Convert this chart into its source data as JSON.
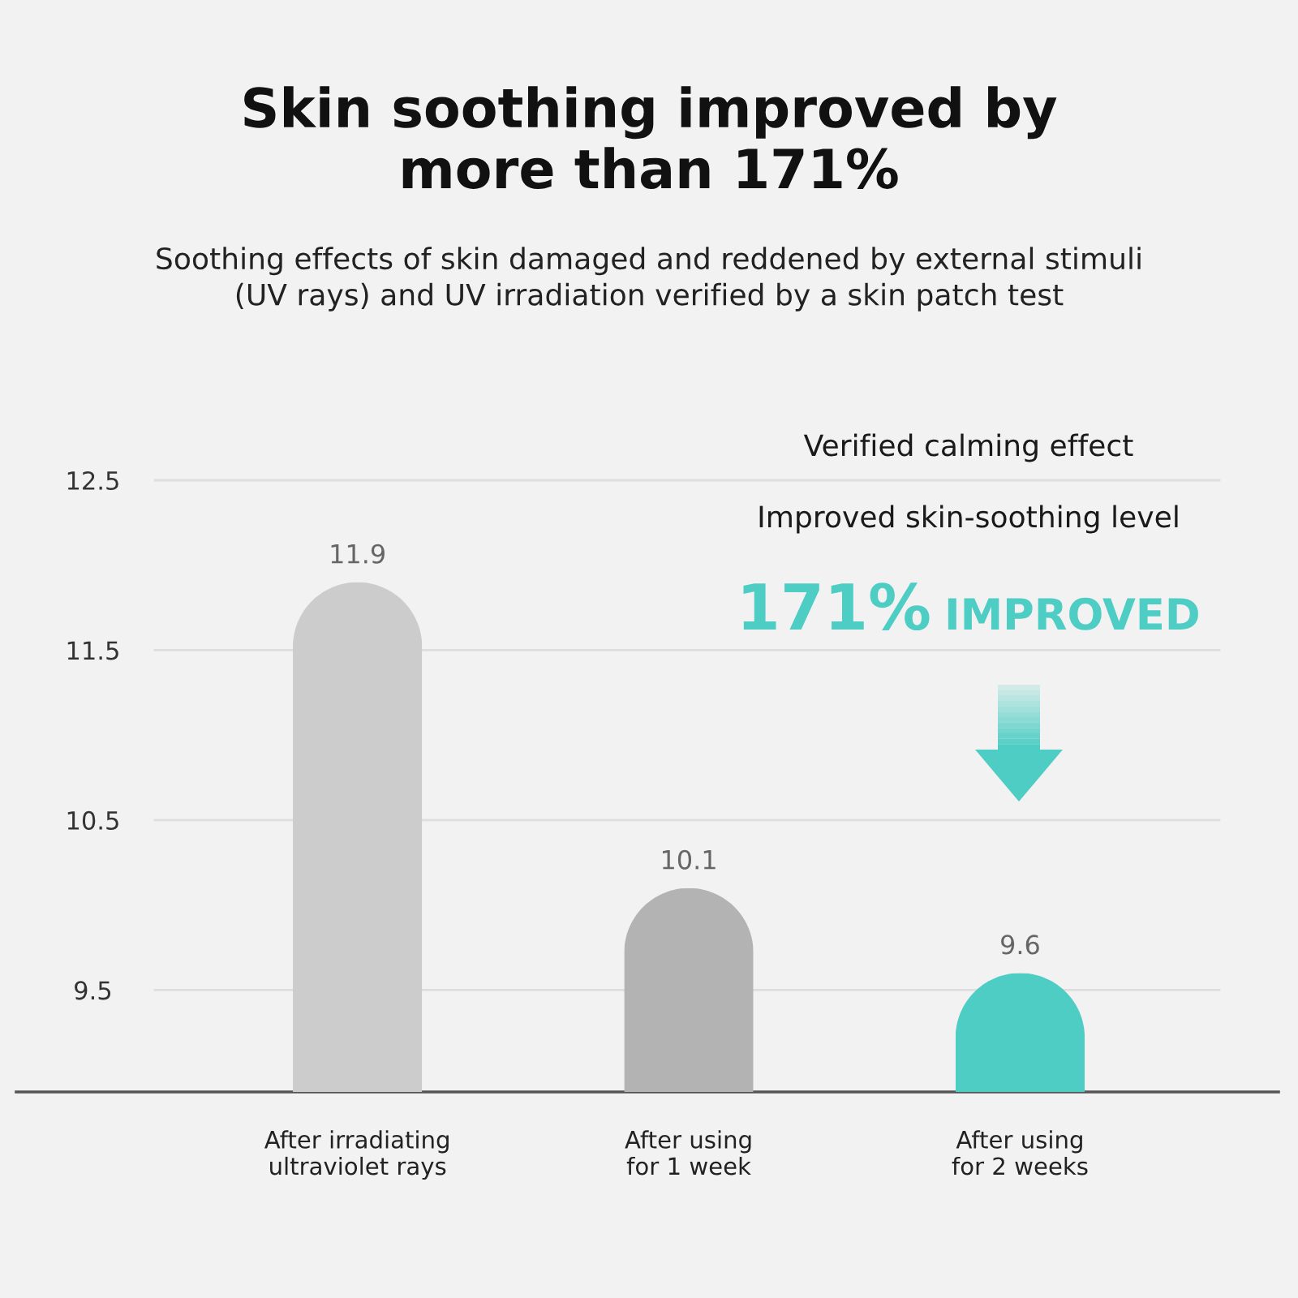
{
  "chart_data": {
    "type": "bar",
    "title": "Skin soothing improved by\nmore than 171%",
    "subtitle": "Soothing effects of skin damaged and reddened by external stimuli\n(UV rays) and UV irradiation verified by a skin patch test",
    "categories": [
      "After irradiating\nultraviolet rays",
      "After using\nfor 1 week",
      "After using\nfor 2 weeks"
    ],
    "values": [
      11.9,
      10.1,
      9.6
    ],
    "colors": [
      "#cccccc",
      "#b3b3b3",
      "#4ecdc4"
    ],
    "ylim": [
      8.9,
      12.5
    ],
    "yticks": [
      9.5,
      10.5,
      11.5,
      12.5
    ],
    "grid": "y",
    "data_labels": true,
    "annotations": [
      "Verified calming effect",
      "Improved skin-soothing level",
      "171%",
      "IMPROVED"
    ]
  }
}
